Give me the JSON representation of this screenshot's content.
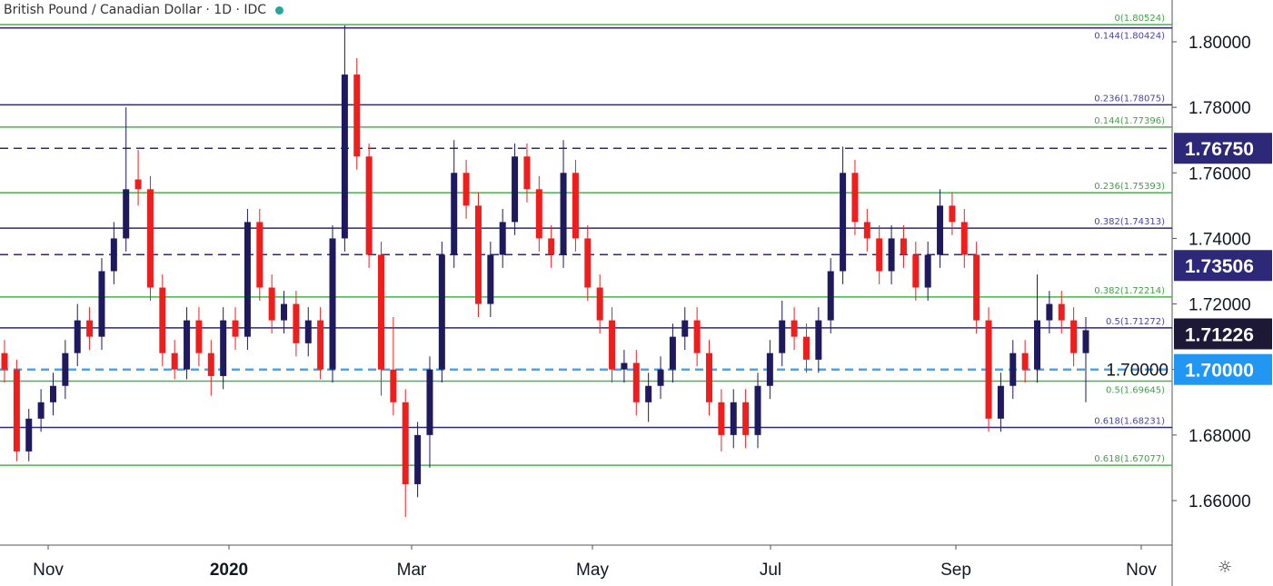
{
  "header": {
    "title": "British Pound / Canadian Dollar · 1D · IDC",
    "status_icon": "live-dot-icon"
  },
  "settings_icon": "gear-icon",
  "colors": {
    "up": "#1f1a5e",
    "down": "#f01d1d",
    "fib_green": "#4caf50",
    "fib_purple": "#2e2878",
    "level_blue": "#42a5f5",
    "axis_text": "#131722"
  },
  "chart_data": {
    "type": "candlestick",
    "title": "British Pound / Canadian Dollar · 1D · IDC",
    "ylim": [
      1.645,
      1.812
    ],
    "y_ticks": [
      "1.80000",
      "1.78000",
      "1.76000",
      "1.74000",
      "1.72000",
      "1.70000",
      "1.68000",
      "1.66000"
    ],
    "x_ticks": [
      "Nov",
      "2020",
      "Mar",
      "May",
      "Jul",
      "Sep",
      "Nov"
    ],
    "grid": false,
    "candles": [
      [
        1.705,
        1.709,
        1.696,
        1.7
      ],
      [
        1.7,
        1.703,
        1.672,
        1.675
      ],
      [
        1.675,
        1.688,
        1.672,
        1.685
      ],
      [
        1.685,
        1.694,
        1.681,
        1.69
      ],
      [
        1.69,
        1.699,
        1.686,
        1.695
      ],
      [
        1.695,
        1.709,
        1.691,
        1.705
      ],
      [
        1.705,
        1.72,
        1.701,
        1.715
      ],
      [
        1.715,
        1.719,
        1.706,
        1.71
      ],
      [
        1.71,
        1.734,
        1.706,
        1.73
      ],
      [
        1.73,
        1.745,
        1.726,
        1.74
      ],
      [
        1.74,
        1.78,
        1.736,
        1.755
      ],
      [
        1.758,
        1.767,
        1.75,
        1.755
      ],
      [
        1.755,
        1.759,
        1.721,
        1.725
      ],
      [
        1.725,
        1.729,
        1.701,
        1.705
      ],
      [
        1.705,
        1.709,
        1.697,
        1.7
      ],
      [
        1.7,
        1.719,
        1.697,
        1.715
      ],
      [
        1.715,
        1.719,
        1.701,
        1.705
      ],
      [
        1.705,
        1.709,
        1.692,
        1.698
      ],
      [
        1.698,
        1.719,
        1.694,
        1.715
      ],
      [
        1.715,
        1.719,
        1.706,
        1.71
      ],
      [
        1.71,
        1.749,
        1.706,
        1.745
      ],
      [
        1.745,
        1.749,
        1.721,
        1.725
      ],
      [
        1.725,
        1.729,
        1.711,
        1.715
      ],
      [
        1.715,
        1.724,
        1.711,
        1.72
      ],
      [
        1.72,
        1.724,
        1.704,
        1.708
      ],
      [
        1.708,
        1.719,
        1.704,
        1.715
      ],
      [
        1.715,
        1.719,
        1.697,
        1.7
      ],
      [
        1.7,
        1.744,
        1.696,
        1.74
      ],
      [
        1.74,
        1.805,
        1.736,
        1.79
      ],
      [
        1.79,
        1.795,
        1.761,
        1.765
      ],
      [
        1.765,
        1.769,
        1.731,
        1.735
      ],
      [
        1.735,
        1.739,
        1.692,
        1.7
      ],
      [
        1.7,
        1.716,
        1.686,
        1.69
      ],
      [
        1.69,
        1.694,
        1.655,
        1.665
      ],
      [
        1.665,
        1.684,
        1.661,
        1.68
      ],
      [
        1.68,
        1.704,
        1.67,
        1.7
      ],
      [
        1.7,
        1.739,
        1.696,
        1.735
      ],
      [
        1.735,
        1.77,
        1.731,
        1.76
      ],
      [
        1.76,
        1.764,
        1.746,
        1.75
      ],
      [
        1.75,
        1.754,
        1.716,
        1.72
      ],
      [
        1.72,
        1.739,
        1.716,
        1.735
      ],
      [
        1.735,
        1.749,
        1.731,
        1.745
      ],
      [
        1.745,
        1.769,
        1.741,
        1.765
      ],
      [
        1.765,
        1.769,
        1.751,
        1.755
      ],
      [
        1.755,
        1.759,
        1.736,
        1.74
      ],
      [
        1.74,
        1.744,
        1.731,
        1.735
      ],
      [
        1.735,
        1.77,
        1.731,
        1.76
      ],
      [
        1.76,
        1.764,
        1.736,
        1.74
      ],
      [
        1.74,
        1.744,
        1.721,
        1.725
      ],
      [
        1.725,
        1.729,
        1.711,
        1.715
      ],
      [
        1.715,
        1.719,
        1.696,
        1.7
      ],
      [
        1.7,
        1.706,
        1.696,
        1.702
      ],
      [
        1.702,
        1.706,
        1.686,
        1.69
      ],
      [
        1.69,
        1.699,
        1.684,
        1.695
      ],
      [
        1.695,
        1.704,
        1.691,
        1.7
      ],
      [
        1.7,
        1.714,
        1.696,
        1.71
      ],
      [
        1.71,
        1.719,
        1.706,
        1.715
      ],
      [
        1.715,
        1.719,
        1.701,
        1.705
      ],
      [
        1.705,
        1.709,
        1.686,
        1.69
      ],
      [
        1.69,
        1.694,
        1.675,
        1.68
      ],
      [
        1.68,
        1.694,
        1.676,
        1.69
      ],
      [
        1.69,
        1.694,
        1.676,
        1.68
      ],
      [
        1.68,
        1.699,
        1.676,
        1.695
      ],
      [
        1.695,
        1.709,
        1.691,
        1.705
      ],
      [
        1.705,
        1.721,
        1.701,
        1.715
      ],
      [
        1.715,
        1.719,
        1.706,
        1.71
      ],
      [
        1.71,
        1.714,
        1.699,
        1.703
      ],
      [
        1.703,
        1.719,
        1.699,
        1.715
      ],
      [
        1.715,
        1.734,
        1.711,
        1.73
      ],
      [
        1.73,
        1.768,
        1.726,
        1.76
      ],
      [
        1.76,
        1.764,
        1.741,
        1.745
      ],
      [
        1.745,
        1.749,
        1.736,
        1.74
      ],
      [
        1.74,
        1.744,
        1.726,
        1.73
      ],
      [
        1.73,
        1.744,
        1.726,
        1.74
      ],
      [
        1.74,
        1.744,
        1.731,
        1.735
      ],
      [
        1.735,
        1.739,
        1.721,
        1.725
      ],
      [
        1.725,
        1.739,
        1.721,
        1.735
      ],
      [
        1.735,
        1.755,
        1.731,
        1.75
      ],
      [
        1.75,
        1.754,
        1.741,
        1.745
      ],
      [
        1.745,
        1.749,
        1.731,
        1.735
      ],
      [
        1.735,
        1.739,
        1.711,
        1.715
      ],
      [
        1.715,
        1.719,
        1.681,
        1.685
      ],
      [
        1.685,
        1.699,
        1.681,
        1.695
      ],
      [
        1.695,
        1.709,
        1.691,
        1.705
      ],
      [
        1.705,
        1.709,
        1.696,
        1.7
      ],
      [
        1.7,
        1.729,
        1.696,
        1.715
      ],
      [
        1.715,
        1.724,
        1.711,
        1.72
      ],
      [
        1.72,
        1.724,
        1.711,
        1.715
      ],
      [
        1.715,
        1.719,
        1.701,
        1.705
      ],
      [
        1.705,
        1.716,
        1.69,
        1.712
      ]
    ],
    "fib_levels_green": [
      {
        "label": "0(1.80524)",
        "value": 1.80524
      },
      {
        "label": "0.144(1.77396)",
        "value": 1.77396
      },
      {
        "label": "0.236(1.75393)",
        "value": 1.75393
      },
      {
        "label": "0.382(1.72214)",
        "value": 1.72214
      },
      {
        "label": "0.5(1.69645)",
        "value": 1.69645
      },
      {
        "label": "0.618(1.67077)",
        "value": 1.67077
      }
    ],
    "fib_levels_purple": [
      {
        "label": "0.144(1.80424)",
        "value": 1.80424
      },
      {
        "label": "0.236(1.78075)",
        "value": 1.78075
      },
      {
        "label": "0.382(1.74313)",
        "value": 1.74313
      },
      {
        "label": "0.5(1.71272)",
        "value": 1.71272
      },
      {
        "label": "0.618(1.68231)",
        "value": 1.68231
      }
    ],
    "dashed_levels": [
      {
        "label": "1.76750",
        "value": 1.7675,
        "color": "#2e2878"
      },
      {
        "label": "1.73506",
        "value": 1.73506,
        "color": "#2e2878"
      },
      {
        "label": "1.70000",
        "value": 1.7,
        "color": "#42a5f5"
      }
    ],
    "price_tags": [
      {
        "label": "1.76750",
        "value": 1.7675,
        "color": "#2e2878"
      },
      {
        "label": "1.73506",
        "value": 1.73506,
        "color": "#2e2878"
      },
      {
        "label": "1.71226",
        "value": 1.71226,
        "color": "#1c1836"
      },
      {
        "label": "1.70000",
        "value": 1.7,
        "color": "#2196f3"
      }
    ],
    "last_price": 1.71226
  }
}
